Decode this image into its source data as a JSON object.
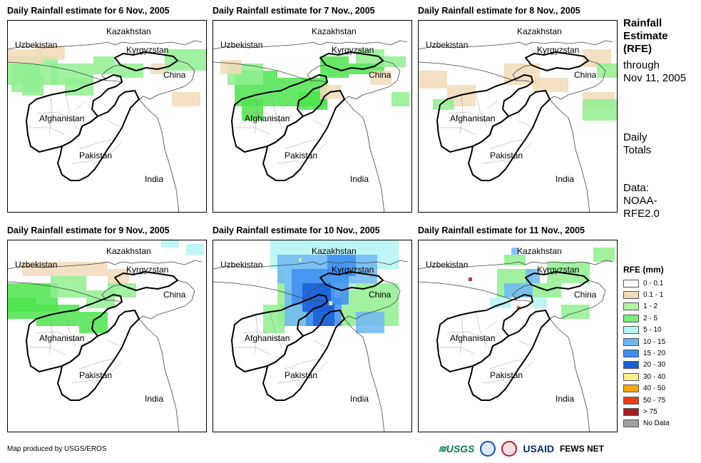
{
  "panels": [
    {
      "title": "Daily Rainfall estimate for 6 Nov., 2005",
      "precip": [
        {
          "level": "1 - 2",
          "color": "#90ee90",
          "cells": [
            [
              0,
              50,
              70,
              40
            ],
            [
              60,
              60,
              60,
              30
            ],
            [
              120,
              50,
              30,
              25
            ],
            [
              150,
              60,
              40,
              20
            ],
            [
              220,
              40,
              60,
              30
            ],
            [
              20,
              75,
              30,
              30
            ],
            [
              5,
              60,
              40,
              40
            ],
            [
              80,
              80,
              40,
              25
            ]
          ]
        },
        {
          "level": "0.1 - 1",
          "color": "#f2dab8",
          "cells": [
            [
              0,
              40,
              50,
              20
            ],
            [
              40,
              35,
              40,
              20
            ],
            [
              200,
              60,
              20,
              15
            ],
            [
              230,
              100,
              40,
              20
            ]
          ]
        }
      ]
    },
    {
      "title": "Daily Rainfall estimate for 7 Nov., 2005",
      "precip": [
        {
          "level": "2 - 5",
          "color": "#4ee44e",
          "cells": [
            [
              30,
              70,
              60,
              50
            ],
            [
              90,
              80,
              70,
              40
            ],
            [
              150,
              50,
              40,
              30
            ],
            [
              190,
              60,
              50,
              15
            ],
            [
              40,
              110,
              30,
              30
            ],
            [
              120,
              100,
              40,
              25
            ]
          ]
        },
        {
          "level": "1 - 2",
          "color": "#90ee90",
          "cells": [
            [
              20,
              60,
              50,
              30
            ],
            [
              200,
              40,
              40,
              20
            ],
            [
              230,
              50,
              40,
              15
            ],
            [
              250,
              100,
              25,
              20
            ]
          ]
        },
        {
          "level": "0.1 - 1",
          "color": "#f2dab8",
          "cells": [
            [
              10,
              55,
              30,
              20
            ],
            [
              150,
              90,
              30,
              20
            ],
            [
              220,
              70,
              30,
              20
            ]
          ]
        }
      ]
    },
    {
      "title": "Daily Rainfall estimate for 8 Nov., 2005",
      "precip": [
        {
          "level": "0.1 - 1",
          "color": "#f2dab8",
          "cells": [
            [
              0,
              70,
              40,
              25
            ],
            [
              40,
              90,
              40,
              30
            ],
            [
              120,
              60,
              50,
              30
            ],
            [
              160,
              80,
              50,
              20
            ],
            [
              230,
              100,
              45,
              25
            ],
            [
              230,
              40,
              40,
              25
            ]
          ]
        },
        {
          "level": "1 - 2",
          "color": "#90ee90",
          "cells": [
            [
              230,
              110,
              50,
              30
            ],
            [
              250,
              60,
              30,
              20
            ],
            [
              20,
              110,
              30,
              15
            ]
          ]
        }
      ]
    },
    {
      "title": "Daily Rainfall estimate for 9 Nov., 2005",
      "precip": [
        {
          "level": "2 - 5",
          "color": "#4ee44e",
          "cells": [
            [
              0,
              60,
              70,
              40
            ],
            [
              40,
              90,
              60,
              30
            ],
            [
              100,
              100,
              40,
              30
            ],
            [
              0,
              80,
              40,
              30
            ]
          ]
        },
        {
          "level": "1 - 2",
          "color": "#90ee90",
          "cells": [
            [
              60,
              50,
              50,
              30
            ],
            [
              110,
              70,
              40,
              25
            ],
            [
              140,
              60,
              40,
              20
            ]
          ]
        },
        {
          "level": "0.1 - 1",
          "color": "#f2dab8",
          "cells": [
            [
              20,
              30,
              70,
              20
            ],
            [
              90,
              30,
              50,
              20
            ],
            [
              140,
              40,
              30,
              20
            ]
          ]
        },
        {
          "level": "5 - 10",
          "color": "#b3f5f5",
          "cells": [
            [
              250,
              5,
              25,
              15
            ],
            [
              215,
              0,
              25,
              10
            ]
          ]
        }
      ]
    },
    {
      "title": "Daily Rainfall estimate for 10 Nov., 2005",
      "precip": [
        {
          "level": "1 - 2",
          "color": "#90ee90",
          "cells": [
            [
              180,
              60,
              80,
              60
            ],
            [
              90,
              40,
              80,
              80
            ],
            [
              70,
              90,
              30,
              40
            ]
          ]
        },
        {
          "level": "5 - 10",
          "color": "#b3f5f5",
          "cells": [
            [
              80,
              0,
              180,
              40
            ],
            [
              100,
              40,
              100,
              30
            ]
          ]
        },
        {
          "level": "10 - 15",
          "color": "#6fb7f5",
          "cells": [
            [
              90,
              20,
              140,
              40
            ],
            [
              100,
              60,
              70,
              60
            ],
            [
              200,
              100,
              40,
              30
            ]
          ]
        },
        {
          "level": "15 - 20",
          "color": "#3e8ef0",
          "cells": [
            [
              110,
              40,
              80,
              50
            ],
            [
              130,
              80,
              50,
              40
            ],
            [
              160,
              20,
              40,
              30
            ]
          ]
        },
        {
          "level": "20 - 30",
          "color": "#1a5fd6",
          "cells": [
            [
              125,
              60,
              40,
              40
            ],
            [
              140,
              90,
              30,
              30
            ]
          ]
        },
        {
          "level": "30 - 40",
          "color": "#fff08f",
          "cells": [
            [
              162,
              85,
              5,
              6
            ],
            [
              120,
              25,
              4,
              5
            ]
          ]
        }
      ]
    },
    {
      "title": "Daily Rainfall estimate for 11 Nov., 2005",
      "precip": [
        {
          "level": "1 - 2",
          "color": "#90ee90",
          "cells": [
            [
              110,
              40,
              50,
              40
            ],
            [
              150,
              60,
              50,
              20
            ],
            [
              180,
              30,
              60,
              30
            ],
            [
              200,
              90,
              40,
              20
            ],
            [
              120,
              20,
              30,
              15
            ],
            [
              245,
              10,
              30,
              20
            ]
          ]
        },
        {
          "level": "10 - 15",
          "color": "#6fb7f5",
          "cells": [
            [
              120,
              60,
              40,
              20
            ],
            [
              150,
              40,
              20,
              20
            ],
            [
              130,
              10,
              10,
              10
            ]
          ]
        },
        {
          "level": "5 - 10",
          "color": "#b3f5f5",
          "cells": [
            [
              100,
              80,
              30,
              15
            ],
            [
              160,
              80,
              20,
              15
            ]
          ]
        },
        {
          "level": "50 - 75",
          "color": "#e63e1e",
          "cells": [
            [
              138,
              92,
              4,
              4
            ]
          ]
        },
        {
          "level": "> 75",
          "color": "#a31f1f",
          "cells": [
            [
              70,
              52,
              5,
              5
            ]
          ]
        }
      ]
    }
  ],
  "map_labels": {
    "kazakhstan": "Kazakhstan",
    "uzbekistan": "Uzbekistan",
    "kyrgyzstan": "Kyrgyzstan",
    "china": "China",
    "afghanistan": "Afghanistan",
    "pakistan": "Pakistan",
    "india": "India"
  },
  "side": {
    "title": "Rainfall Estimate (RFE)",
    "title_lines": [
      "Rainfall",
      "Estimate",
      "(RFE)"
    ],
    "through_lines": [
      "through",
      "Nov 11, 2005"
    ],
    "daily_lines": [
      "Daily",
      "Totals"
    ],
    "data_lines": [
      "Data:",
      "NOAA-",
      "RFE2.0"
    ]
  },
  "legend": {
    "title": "RFE (mm)",
    "items": [
      {
        "label": "0 - 0.1",
        "color": "#ffffff"
      },
      {
        "label": "0.1 - 1",
        "color": "#f2dab8"
      },
      {
        "label": "1 - 2",
        "color": "#b5f2a8"
      },
      {
        "label": "2 - 5",
        "color": "#7beb7b"
      },
      {
        "label": "5 - 10",
        "color": "#b3f5f5"
      },
      {
        "label": "10 - 15",
        "color": "#6fb7f5"
      },
      {
        "label": "15 - 20",
        "color": "#3e8ef0"
      },
      {
        "label": "20 - 30",
        "color": "#1a5fd6"
      },
      {
        "label": "30 - 40",
        "color": "#fff08f"
      },
      {
        "label": "40 - 50",
        "color": "#ffa500"
      },
      {
        "label": "50 - 75",
        "color": "#e63e1e"
      },
      {
        "label": "> 75",
        "color": "#a31f1f"
      },
      {
        "label": "No Data",
        "color": "#a0a0a0"
      }
    ]
  },
  "footer": {
    "credit": "Map produced by USGS/EROS",
    "logos": {
      "usgs": "≋USGS",
      "usaid": "USAID",
      "fews": "FEWS NET"
    }
  }
}
